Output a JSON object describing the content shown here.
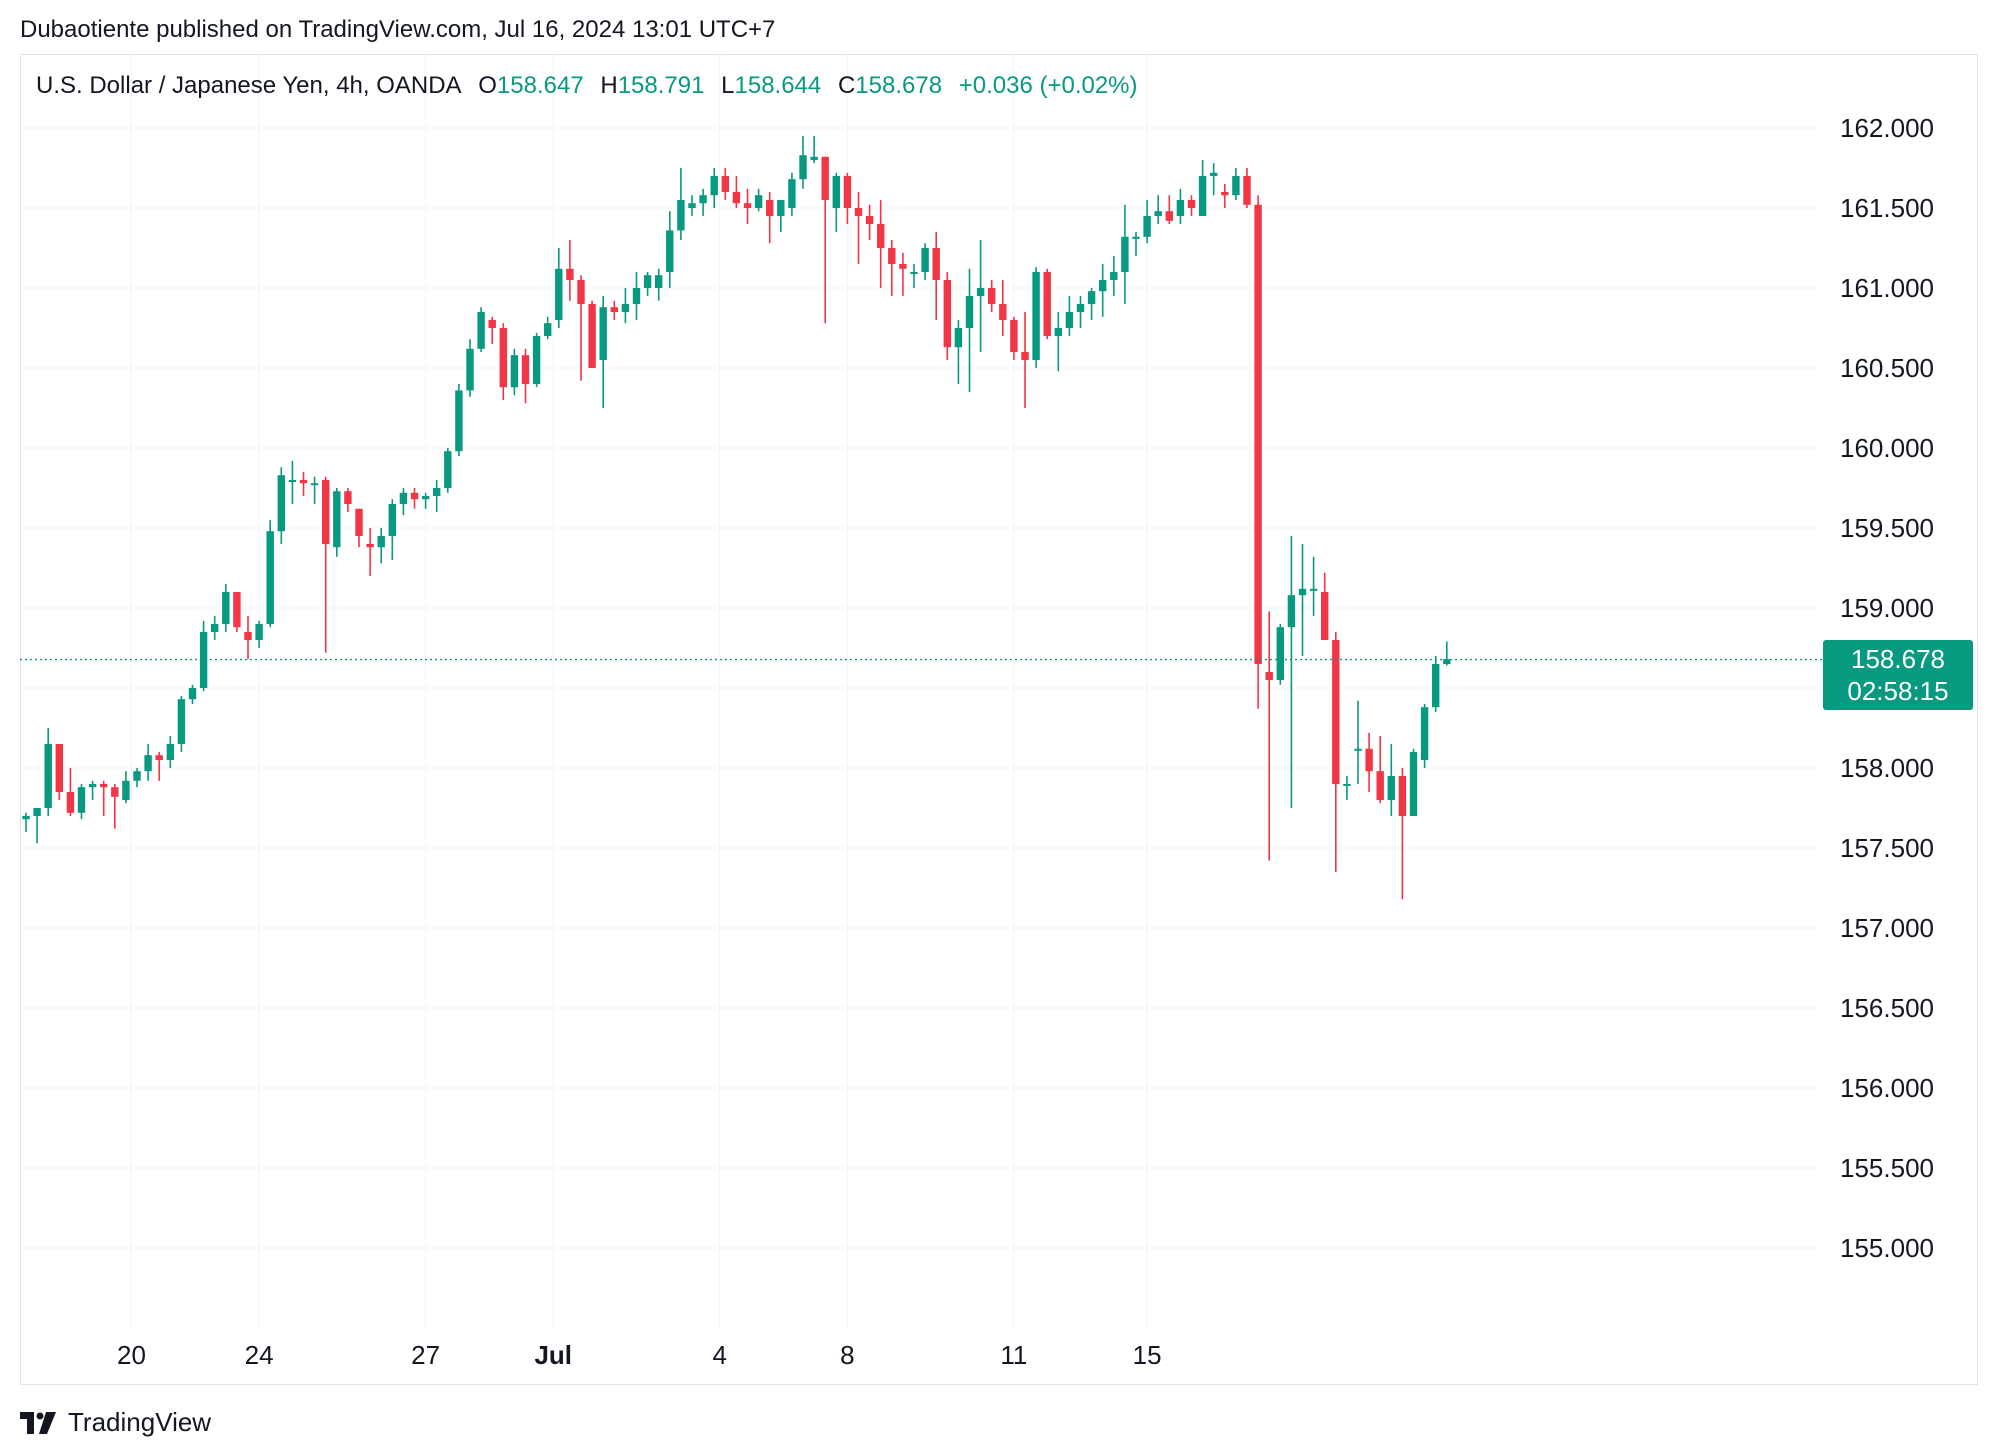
{
  "header": {
    "publisher_line": "Dubaotiente published on TradingView.com, Jul 16, 2024 13:01 UTC+7"
  },
  "legend": {
    "symbol": "U.S. Dollar / Japanese Yen, 4h, OANDA",
    "open_label": "O",
    "open": "158.647",
    "high_label": "H",
    "high": "158.791",
    "low_label": "L",
    "low": "158.644",
    "close_label": "C",
    "close": "158.678",
    "change": "+0.036 (+0.02%)"
  },
  "price_tag": {
    "price": "158.678",
    "countdown": "02:58:15"
  },
  "footer": {
    "brand": "TradingView"
  },
  "colors": {
    "up": "#089981",
    "down": "#f23645",
    "grid": "#f0f3fa",
    "text": "#131722"
  },
  "chart_data": {
    "type": "candlestick",
    "interval": "4h",
    "ylim": [
      154.5,
      162.5
    ],
    "y_ticks": [
      "162.000",
      "161.500",
      "161.000",
      "160.500",
      "160.000",
      "159.500",
      "159.000",
      "158.500",
      "158.000",
      "157.500",
      "157.000",
      "156.500",
      "156.000",
      "155.500",
      "155.000"
    ],
    "x_ticks": [
      {
        "label": "20",
        "index": 9.5
      },
      {
        "label": "24",
        "index": 21
      },
      {
        "label": "27",
        "index": 36
      },
      {
        "label": "Jul",
        "index": 47.5
      },
      {
        "label": "4",
        "index": 62.5
      },
      {
        "label": "8",
        "index": 74
      },
      {
        "label": "11",
        "index": 89
      },
      {
        "label": "15",
        "index": 101
      }
    ],
    "last_price": 158.678,
    "candles": [
      [
        157.68,
        157.72,
        157.6,
        157.7
      ],
      [
        157.7,
        157.75,
        157.53,
        157.75
      ],
      [
        157.75,
        158.25,
        157.7,
        158.15
      ],
      [
        158.15,
        158.15,
        157.8,
        157.85
      ],
      [
        157.85,
        158.0,
        157.7,
        157.72
      ],
      [
        157.72,
        157.9,
        157.68,
        157.88
      ],
      [
        157.88,
        157.92,
        157.8,
        157.9
      ],
      [
        157.9,
        157.92,
        157.7,
        157.88
      ],
      [
        157.88,
        157.9,
        157.62,
        157.82
      ],
      [
        157.8,
        157.98,
        157.78,
        157.92
      ],
      [
        157.92,
        158.0,
        157.88,
        157.98
      ],
      [
        157.98,
        158.15,
        157.92,
        158.08
      ],
      [
        158.08,
        158.1,
        157.92,
        158.05
      ],
      [
        158.05,
        158.2,
        158.0,
        158.15
      ],
      [
        158.15,
        158.45,
        158.1,
        158.43
      ],
      [
        158.43,
        158.52,
        158.4,
        158.5
      ],
      [
        158.5,
        158.92,
        158.48,
        158.85
      ],
      [
        158.85,
        158.95,
        158.8,
        158.9
      ],
      [
        158.9,
        159.15,
        158.85,
        159.1
      ],
      [
        159.1,
        159.1,
        158.85,
        158.88
      ],
      [
        158.85,
        158.95,
        158.68,
        158.8
      ],
      [
        158.8,
        158.92,
        158.75,
        158.9
      ],
      [
        158.9,
        159.55,
        158.88,
        159.48
      ],
      [
        159.48,
        159.88,
        159.4,
        159.83
      ],
      [
        159.8,
        159.92,
        159.65,
        159.8
      ],
      [
        159.8,
        159.85,
        159.7,
        159.78
      ],
      [
        159.78,
        159.82,
        159.65,
        159.78
      ],
      [
        159.8,
        159.82,
        158.72,
        159.4
      ],
      [
        159.38,
        159.75,
        159.32,
        159.73
      ],
      [
        159.73,
        159.75,
        159.6,
        159.65
      ],
      [
        159.62,
        159.62,
        159.38,
        159.45
      ],
      [
        159.4,
        159.5,
        159.2,
        159.38
      ],
      [
        159.38,
        159.5,
        159.28,
        159.45
      ],
      [
        159.45,
        159.68,
        159.3,
        159.65
      ],
      [
        159.65,
        159.75,
        159.58,
        159.72
      ],
      [
        159.72,
        159.75,
        159.62,
        159.68
      ],
      [
        159.68,
        159.72,
        159.62,
        159.7
      ],
      [
        159.7,
        159.8,
        159.6,
        159.75
      ],
      [
        159.75,
        160.0,
        159.72,
        159.98
      ],
      [
        159.98,
        160.4,
        159.95,
        160.36
      ],
      [
        160.36,
        160.68,
        160.32,
        160.62
      ],
      [
        160.62,
        160.88,
        160.6,
        160.85
      ],
      [
        160.8,
        160.82,
        160.65,
        160.75
      ],
      [
        160.75,
        160.78,
        160.3,
        160.38
      ],
      [
        160.38,
        160.62,
        160.33,
        160.58
      ],
      [
        160.58,
        160.62,
        160.28,
        160.4
      ],
      [
        160.4,
        160.72,
        160.38,
        160.7
      ],
      [
        160.7,
        160.82,
        160.68,
        160.78
      ],
      [
        160.8,
        161.25,
        160.75,
        161.12
      ],
      [
        161.12,
        161.3,
        160.92,
        161.05
      ],
      [
        161.05,
        161.08,
        160.42,
        160.9
      ],
      [
        160.9,
        160.92,
        160.5,
        160.5
      ],
      [
        160.55,
        160.95,
        160.25,
        160.88
      ],
      [
        160.88,
        160.92,
        160.8,
        160.85
      ],
      [
        160.85,
        161.0,
        160.78,
        160.9
      ],
      [
        160.9,
        161.1,
        160.8,
        161.0
      ],
      [
        161.0,
        161.1,
        160.95,
        161.08
      ],
      [
        161.0,
        161.12,
        160.92,
        161.08
      ],
      [
        161.1,
        161.48,
        161.0,
        161.36
      ],
      [
        161.36,
        161.75,
        161.3,
        161.55
      ],
      [
        161.5,
        161.58,
        161.45,
        161.53
      ],
      [
        161.53,
        161.62,
        161.45,
        161.58
      ],
      [
        161.58,
        161.75,
        161.5,
        161.7
      ],
      [
        161.7,
        161.75,
        161.55,
        161.6
      ],
      [
        161.6,
        161.7,
        161.5,
        161.53
      ],
      [
        161.53,
        161.62,
        161.4,
        161.5
      ],
      [
        161.5,
        161.62,
        161.48,
        161.58
      ],
      [
        161.55,
        161.6,
        161.28,
        161.45
      ],
      [
        161.45,
        161.55,
        161.35,
        161.55
      ],
      [
        161.5,
        161.72,
        161.45,
        161.68
      ],
      [
        161.68,
        161.95,
        161.62,
        161.83
      ],
      [
        161.8,
        161.95,
        161.78,
        161.82
      ],
      [
        161.82,
        161.82,
        160.78,
        161.55
      ],
      [
        161.5,
        161.72,
        161.35,
        161.7
      ],
      [
        161.7,
        161.72,
        161.4,
        161.5
      ],
      [
        161.5,
        161.6,
        161.15,
        161.45
      ],
      [
        161.45,
        161.52,
        161.3,
        161.4
      ],
      [
        161.4,
        161.55,
        161.0,
        161.25
      ],
      [
        161.25,
        161.3,
        160.95,
        161.15
      ],
      [
        161.15,
        161.22,
        160.95,
        161.12
      ],
      [
        161.1,
        161.15,
        161.0,
        161.1
      ],
      [
        161.1,
        161.28,
        161.05,
        161.25
      ],
      [
        161.25,
        161.35,
        160.8,
        161.05
      ],
      [
        161.05,
        161.1,
        160.55,
        160.63
      ],
      [
        160.63,
        160.8,
        160.4,
        160.75
      ],
      [
        160.75,
        161.12,
        160.35,
        160.95
      ],
      [
        160.95,
        161.3,
        160.6,
        161.0
      ],
      [
        161.0,
        161.05,
        160.85,
        160.9
      ],
      [
        160.9,
        161.05,
        160.7,
        160.8
      ],
      [
        160.8,
        160.82,
        160.55,
        160.6
      ],
      [
        160.6,
        160.85,
        160.25,
        160.55
      ],
      [
        160.55,
        161.13,
        160.5,
        161.1
      ],
      [
        161.1,
        161.12,
        160.68,
        160.7
      ],
      [
        160.7,
        160.85,
        160.48,
        160.75
      ],
      [
        160.75,
        160.95,
        160.7,
        160.85
      ],
      [
        160.85,
        160.95,
        160.75,
        160.9
      ],
      [
        160.9,
        161.0,
        160.8,
        160.98
      ],
      [
        160.98,
        161.15,
        160.82,
        161.05
      ],
      [
        161.05,
        161.2,
        160.95,
        161.1
      ],
      [
        161.1,
        161.52,
        160.9,
        161.32
      ],
      [
        161.32,
        161.35,
        161.2,
        161.32
      ],
      [
        161.32,
        161.55,
        161.28,
        161.45
      ],
      [
        161.45,
        161.58,
        161.4,
        161.48
      ],
      [
        161.48,
        161.58,
        161.4,
        161.42
      ],
      [
        161.45,
        161.62,
        161.4,
        161.55
      ],
      [
        161.55,
        161.58,
        161.45,
        161.5
      ],
      [
        161.45,
        161.8,
        161.45,
        161.7
      ],
      [
        161.7,
        161.78,
        161.58,
        161.72
      ],
      [
        161.6,
        161.65,
        161.5,
        161.58
      ],
      [
        161.58,
        161.75,
        161.55,
        161.7
      ],
      [
        161.7,
        161.75,
        161.5,
        161.52
      ],
      [
        161.52,
        161.58,
        158.37,
        158.65
      ],
      [
        158.6,
        158.98,
        157.42,
        158.55
      ],
      [
        158.55,
        158.9,
        158.52,
        158.88
      ],
      [
        158.88,
        159.45,
        157.75,
        159.08
      ],
      [
        159.08,
        159.4,
        158.7,
        159.12
      ],
      [
        159.12,
        159.32,
        158.95,
        159.12
      ],
      [
        159.1,
        159.22,
        158.8,
        158.8
      ],
      [
        158.8,
        158.85,
        157.35,
        157.9
      ],
      [
        157.9,
        157.95,
        157.8,
        157.9
      ],
      [
        158.12,
        158.42,
        157.9,
        158.12
      ],
      [
        158.12,
        158.22,
        157.85,
        157.98
      ],
      [
        157.98,
        158.2,
        157.78,
        157.8
      ],
      [
        157.8,
        158.15,
        157.7,
        157.95
      ],
      [
        157.95,
        158.0,
        157.18,
        157.7
      ],
      [
        157.7,
        158.12,
        157.7,
        158.1
      ],
      [
        158.05,
        158.4,
        158.0,
        158.38
      ],
      [
        158.38,
        158.7,
        158.35,
        158.65
      ],
      [
        158.65,
        158.79,
        158.64,
        158.68
      ]
    ]
  }
}
